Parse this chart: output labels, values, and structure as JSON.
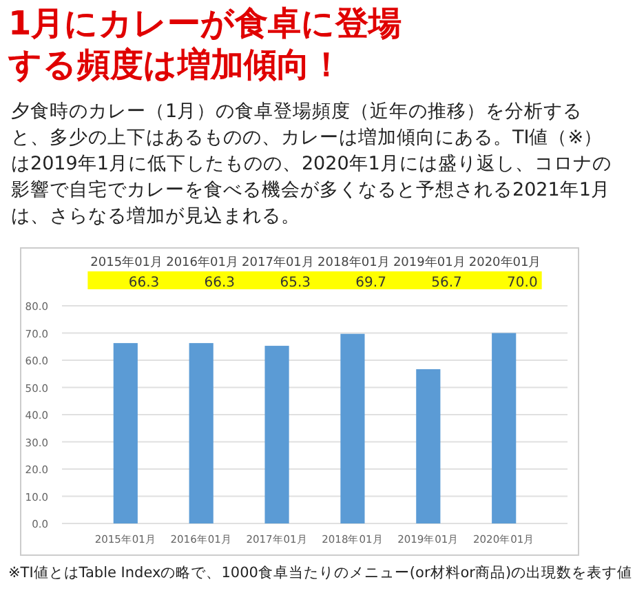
{
  "chart_data": {
    "type": "bar",
    "title": "1月にカレーが食卓に登場する頻度は増加傾向！",
    "subtitle": "夕食時のカレー（1月）の食卓登場頻度（近年の推移）を分析すると、多少の上下はあるものの、カレーは増加傾向にある。TI値（※）は2019年1月に低下したものの、2020年1月には盛り返し、コロナの影響で自宅でカレーを食べる機会が多くなると予想される2021年1月は、さらなる増加が見込まれる。",
    "categories": [
      "2015年01月",
      "2016年01月",
      "2017年01月",
      "2018年01月",
      "2019年01月",
      "2020年01月"
    ],
    "values": [
      66.3,
      66.3,
      65.3,
      69.7,
      56.7,
      70.0
    ],
    "value_labels": [
      "66.3",
      "66.3",
      "65.3",
      "69.7",
      "56.7",
      "70.0"
    ],
    "color": "#5b9bd5",
    "ylim": [
      0,
      80
    ],
    "yticks": [
      {
        "value": 0,
        "label": "0.0"
      },
      {
        "value": 10,
        "label": "10.0"
      },
      {
        "value": 20,
        "label": "20.0"
      },
      {
        "value": 30,
        "label": "30.0"
      },
      {
        "value": 40,
        "label": "40.0"
      },
      {
        "value": 50,
        "label": "50.0"
      },
      {
        "value": 60,
        "label": "60.0"
      },
      {
        "value": 70,
        "label": "70.0"
      },
      {
        "value": 80,
        "label": "80.0"
      }
    ],
    "grid": "y",
    "annotations": [
      "※TI値とはTable Indexの略で、1000食卓当たりのメニュー(or材料or商品)の出現数を表す値"
    ]
  }
}
